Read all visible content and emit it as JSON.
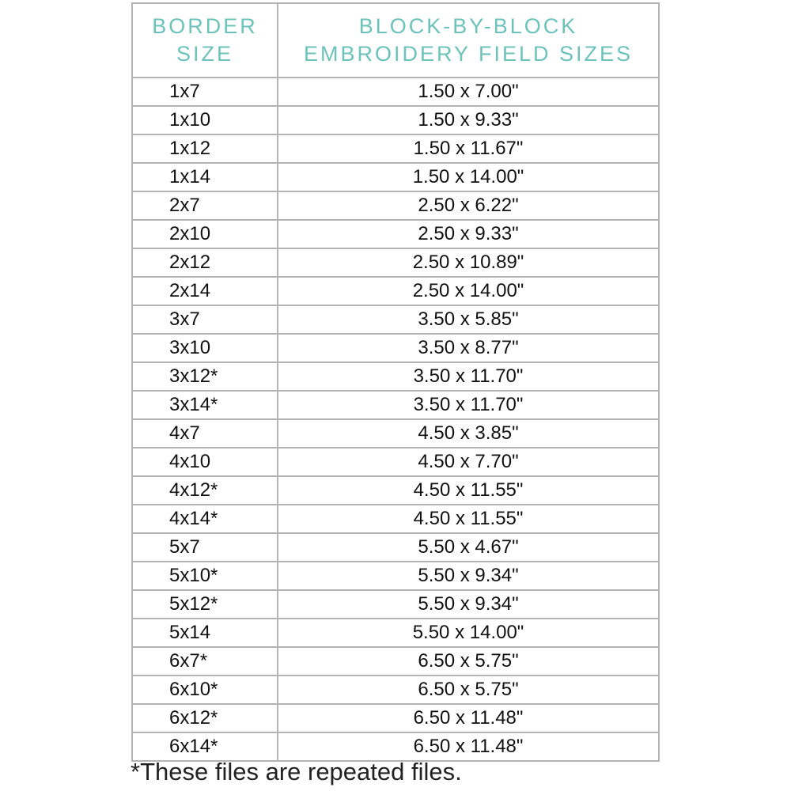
{
  "header": {
    "border_size": "BORDER SIZE",
    "field_sizes": "BLOCK-BY-BLOCK EMBROIDERY FIELD SIZES"
  },
  "colors": {
    "header_text": "#6cc3bb",
    "grid": "#b4b4b4"
  },
  "rows": [
    {
      "size": "1x7",
      "field": "1.50 x 7.00\""
    },
    {
      "size": "1x10",
      "field": "1.50 x 9.33\""
    },
    {
      "size": "1x12",
      "field": "1.50 x 11.67\""
    },
    {
      "size": "1x14",
      "field": "1.50 x 14.00\""
    },
    {
      "size": "2x7",
      "field": "2.50 x 6.22\""
    },
    {
      "size": "2x10",
      "field": "2.50 x 9.33\""
    },
    {
      "size": "2x12",
      "field": "2.50 x 10.89\""
    },
    {
      "size": "2x14",
      "field": "2.50 x 14.00\""
    },
    {
      "size": "3x7",
      "field": "3.50 x 5.85\""
    },
    {
      "size": "3x10",
      "field": "3.50 x 8.77\""
    },
    {
      "size": "3x12*",
      "field": "3.50 x 11.70\""
    },
    {
      "size": "3x14*",
      "field": "3.50 x 11.70\""
    },
    {
      "size": "4x7",
      "field": "4.50 x 3.85\""
    },
    {
      "size": "4x10",
      "field": "4.50 x 7.70\""
    },
    {
      "size": "4x12*",
      "field": "4.50 x 11.55\""
    },
    {
      "size": "4x14*",
      "field": "4.50 x 11.55\""
    },
    {
      "size": "5x7",
      "field": "5.50 x 4.67\""
    },
    {
      "size": "5x10*",
      "field": "5.50 x 9.34\""
    },
    {
      "size": "5x12*",
      "field": "5.50 x 9.34\""
    },
    {
      "size": "5x14",
      "field": "5.50 x 14.00\""
    },
    {
      "size": "6x7*",
      "field": "6.50 x 5.75\""
    },
    {
      "size": "6x10*",
      "field": "6.50 x 5.75\""
    },
    {
      "size": "6x12*",
      "field": "6.50 x 11.48\""
    },
    {
      "size": "6x14*",
      "field": "6.50 x 11.48\""
    }
  ],
  "footnote": "*These files are repeated files."
}
